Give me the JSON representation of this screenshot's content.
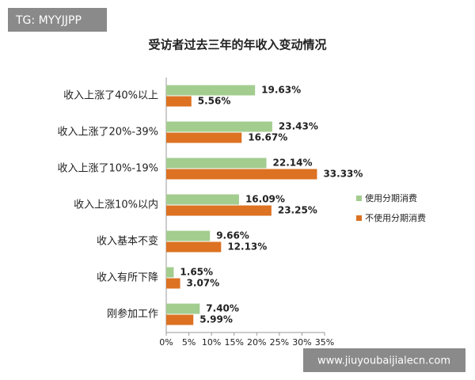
{
  "watermark_top": "TG: MYYJJPP",
  "watermark_bottom": "www.jiuyoubaijialecn.com",
  "chart_data": {
    "type": "hbar",
    "title": "受访者过去三年的年收入变动情况",
    "categories": [
      "收入上涨了40%以上",
      "收入上涨了20%-39%",
      "收入上涨了10%-19%",
      "收入上涨10%以内",
      "收入基本不变",
      "收入有所下降",
      "刚参加工作"
    ],
    "series": [
      {
        "name": "使用分期消费",
        "color": "#a3cd8f",
        "values": [
          19.63,
          23.43,
          22.14,
          16.09,
          9.66,
          1.65,
          7.4
        ],
        "value_labels": [
          "19.63%",
          "23.43%",
          "22.14%",
          "16.09%",
          "9.66%",
          "1.65%",
          "7.40%"
        ]
      },
      {
        "name": "不使用分期消费",
        "color": "#dc7222",
        "values": [
          5.56,
          16.67,
          33.33,
          23.25,
          12.13,
          3.07,
          5.99
        ],
        "value_labels": [
          "5.56%",
          "16.67%",
          "33.33%",
          "23.25%",
          "12.13%",
          "3.07%",
          "5.99%"
        ]
      }
    ],
    "xlim": [
      0,
      35
    ],
    "xticks": [
      {
        "value": 0,
        "label": "0%"
      },
      {
        "value": 5,
        "label": "5%"
      },
      {
        "value": 10,
        "label": "10%"
      },
      {
        "value": 15,
        "label": "15%"
      },
      {
        "value": 20,
        "label": "20%"
      },
      {
        "value": 25,
        "label": "25%"
      },
      {
        "value": 30,
        "label": "30%"
      },
      {
        "value": 35,
        "label": "35%"
      }
    ],
    "legend": "right"
  }
}
